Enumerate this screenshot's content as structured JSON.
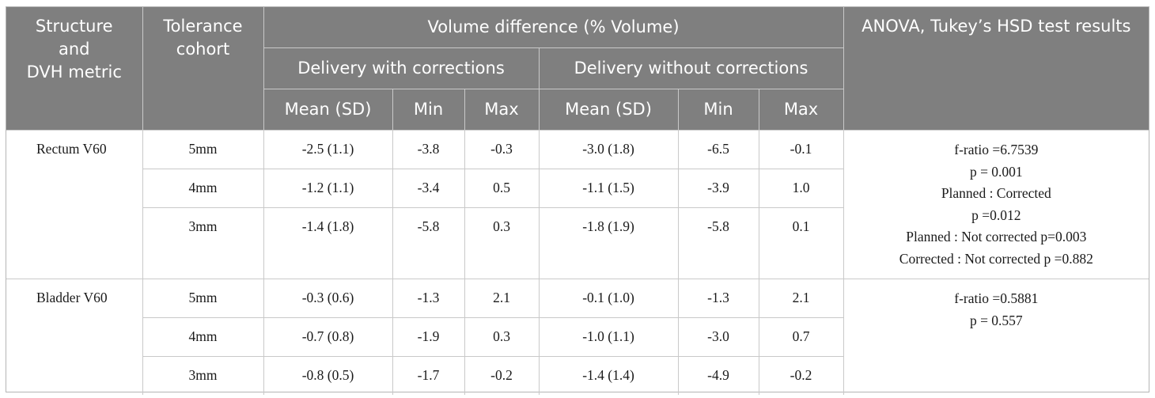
{
  "header": {
    "structure": "Structure and DVH metric",
    "structure_lines": [
      "Structure",
      "and",
      "DVH metric"
    ],
    "tolerance_lines": [
      "Tolerance",
      "cohort"
    ],
    "volume_diff": "Volume difference (% Volume)",
    "with_corrections": "Delivery with corrections",
    "without_corrections": "Delivery without corrections",
    "anova": "ANOVA, Tukey’s HSD test results",
    "sub_columns": [
      "Mean (SD)",
      "Min",
      "Max",
      "Mean (SD)",
      "Min",
      "Max"
    ]
  },
  "groups": [
    {
      "structure": "Rectum V60",
      "stats": [
        "f-ratio =6.7539",
        "p = 0.001",
        "Planned : Corrected",
        "p =0.012",
        "Planned : Not corrected p=0.003",
        "Corrected : Not corrected p =0.882"
      ],
      "rows": [
        {
          "tol": "5mm",
          "cells": [
            "-2.5 (1.1)",
            "-3.8",
            "-0.3",
            "-3.0 (1.8)",
            "-6.5",
            "-0.1"
          ]
        },
        {
          "tol": "4mm",
          "cells": [
            "-1.2 (1.1)",
            "-3.4",
            "0.5",
            "-1.1 (1.5)",
            "-3.9",
            "1.0"
          ]
        },
        {
          "tol": "3mm",
          "cells": [
            "-1.4 (1.8)",
            "-5.8",
            "0.3",
            "-1.8 (1.9)",
            "-5.8",
            "0.1"
          ]
        }
      ]
    },
    {
      "structure": "Bladder V60",
      "stats": [
        "f-ratio =0.5881",
        "p = 0.557"
      ],
      "rows": [
        {
          "tol": "5mm",
          "cells": [
            "-0.3 (0.6)",
            "-1.3",
            "2.1",
            "-0.1 (1.0)",
            "-1.3",
            "2.1"
          ]
        },
        {
          "tol": "4mm",
          "cells": [
            "-0.7 (0.8)",
            "-1.9",
            "0.3",
            "-1.0 (1.1)",
            "-3.0",
            "0.7"
          ]
        },
        {
          "tol": "3mm",
          "cells": [
            "-0.8 (0.5)",
            "-1.7",
            "-0.2",
            "-1.4 (1.4)",
            "-4.9",
            "-0.2"
          ]
        }
      ]
    }
  ]
}
